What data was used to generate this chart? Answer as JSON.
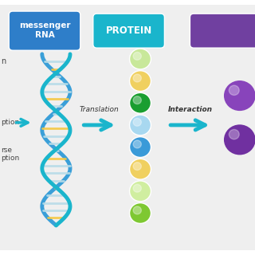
{
  "bg_color": "#efefef",
  "mrna_box_color": "#2e7ec9",
  "mrna_box_text": "messenger\nRNA",
  "protein_box_color": "#1ab5cc",
  "protein_box_text": "PROTEIN",
  "purple_box_color": "#7040a0",
  "arrow_color": "#1ab5cc",
  "translation_text": "Translation",
  "interaction_text": "Interaction",
  "dna_strand1_color": "#1ab5cc",
  "dna_strand2_color": "#3a9fd8",
  "dna_rung_color1": "#f5c842",
  "dna_rung_color2": "#b8dce8",
  "protein_bead_colors": [
    "#c8e89a",
    "#f0d060",
    "#1a9e30",
    "#a8d8f0",
    "#3a9ad8",
    "#f0d060",
    "#d0eea0",
    "#7ec832"
  ],
  "purple_circle_color1": "#8844bb",
  "purple_circle_color2": "#7030a0",
  "white_bg": "#ffffff"
}
